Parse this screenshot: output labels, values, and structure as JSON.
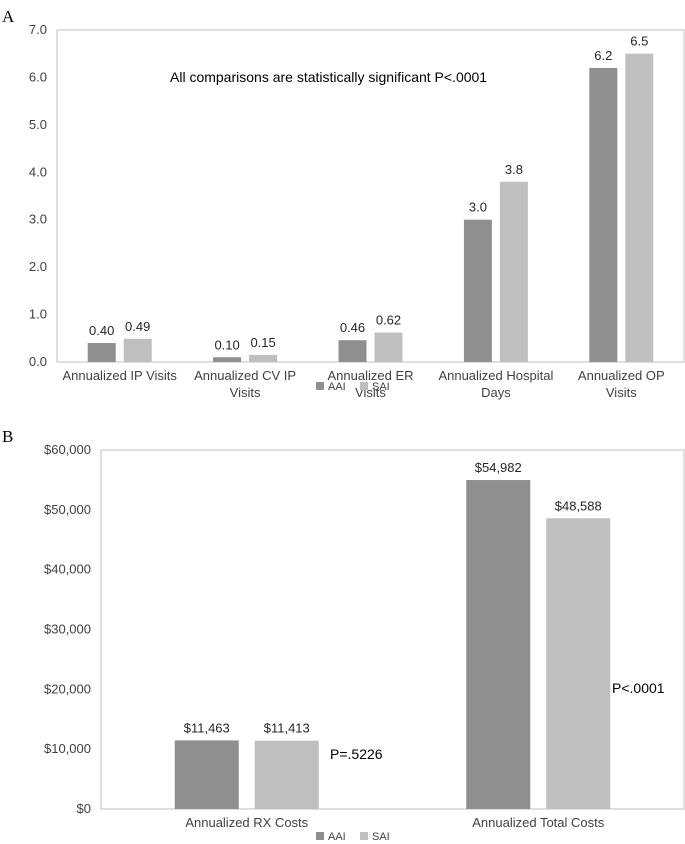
{
  "colors": {
    "AAI": "#8f8f8f",
    "SAI": "#bfbfbf",
    "axis": "#bfbfbf",
    "border": "#bfbfbf"
  },
  "chart_data": [
    {
      "panel": "A",
      "type": "bar",
      "categories": [
        [
          "Annualized IP Visits"
        ],
        [
          "Annualized CV IP",
          "Visits"
        ],
        [
          "Annualized ER",
          "Visits"
        ],
        [
          "Annualized Hospital",
          "Days"
        ],
        [
          "Annualized OP",
          "Visits"
        ]
      ],
      "series": [
        {
          "name": "AAI",
          "values": [
            0.4,
            0.1,
            0.46,
            3.0,
            6.2
          ],
          "labels": [
            "0.40",
            "0.10",
            "0.46",
            "3.0",
            "6.2"
          ]
        },
        {
          "name": "SAI",
          "values": [
            0.49,
            0.15,
            0.62,
            3.8,
            6.5
          ],
          "labels": [
            "0.49",
            "0.15",
            "0.62",
            "3.8",
            "6.5"
          ]
        }
      ],
      "ylim": [
        0,
        7
      ],
      "yticks": [
        "0.0",
        "1.0",
        "2.0",
        "3.0",
        "4.0",
        "5.0",
        "6.0",
        "7.0"
      ],
      "annotation": "All comparisons are statistically significant P<.0001",
      "legend": [
        "AAI",
        "SAI"
      ],
      "grid": false
    },
    {
      "panel": "B",
      "type": "bar",
      "categories": [
        [
          "Annualized RX Costs"
        ],
        [
          "Annualized Total Costs"
        ]
      ],
      "series": [
        {
          "name": "AAI",
          "values": [
            11463,
            54982
          ],
          "labels": [
            "$11,463",
            "$54,982"
          ]
        },
        {
          "name": "SAI",
          "values": [
            11413,
            48588
          ],
          "labels": [
            "$11,413",
            "$48,588"
          ]
        }
      ],
      "ylim": [
        0,
        60000
      ],
      "yticks": [
        "$0",
        "$10,000",
        "$20,000",
        "$30,000",
        "$40,000",
        "$50,000",
        "$60,000"
      ],
      "pvalues": [
        "P=.5226",
        "P<.0001"
      ],
      "legend": [
        "AAI",
        "SAI"
      ],
      "grid": false
    }
  ]
}
